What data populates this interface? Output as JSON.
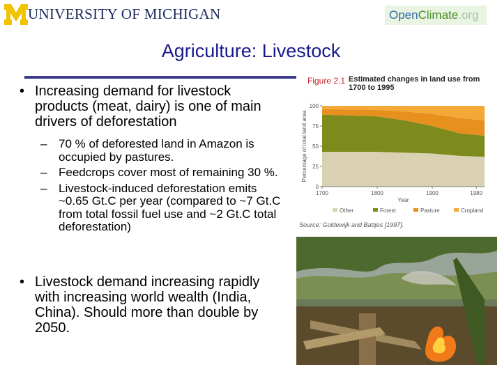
{
  "header": {
    "university": "UNIVERSITY OF MICHIGAN",
    "logo_open": "Open",
    "logo_climate": "Climate",
    "logo_org": ".org"
  },
  "title": "Agriculture: Livestock",
  "bullets": [
    {
      "text": "Increasing demand for livestock products (meat, dairy) is one of main drivers of deforestation",
      "subitems": [
        "70 % of deforested land in Amazon is occupied by pastures.",
        "Feedcrops cover most of remaining 30 %.",
        "Livestock-induced deforestation emits ~0.65 Gt.C per year (compared to ~7 Gt.C from total fossil fuel use and ~2 Gt.C total deforestation)"
      ]
    },
    {
      "text": "Livestock demand increasing rapidly with increasing world wealth (India, China).  Should more than double by 2050.",
      "subitems": []
    }
  ],
  "figure": {
    "label": "Figure 2.1",
    "source": "Source: Goldewijk and Battjes [1997].",
    "chart_data": {
      "type": "stacked-area",
      "title": "Estimated changes in land use from 1700 to 1995",
      "x_label": "Year",
      "y_label": "Percentage of total land area",
      "x": [
        1700,
        1800,
        1850,
        1900,
        1950,
        1995
      ],
      "series": [
        {
          "name": "Other",
          "color": "#d9d1b1",
          "values": [
            43,
            43,
            42,
            41,
            38,
            37
          ]
        },
        {
          "name": "Forest",
          "color": "#7d8a1c",
          "values": [
            46,
            44,
            40,
            34,
            28,
            26
          ]
        },
        {
          "name": "Pasture",
          "color": "#e8901e",
          "values": [
            7,
            8,
            11,
            15,
            19,
            19
          ]
        },
        {
          "name": "Cropland",
          "color": "#f4a838",
          "values": [
            4,
            5,
            7,
            10,
            15,
            18
          ]
        }
      ],
      "xlim": [
        1700,
        1995
      ],
      "xticks": [
        1700,
        1800,
        1900,
        1980
      ],
      "ylim": [
        0,
        100
      ],
      "yticks": [
        0,
        25,
        50,
        75,
        100
      ]
    }
  }
}
